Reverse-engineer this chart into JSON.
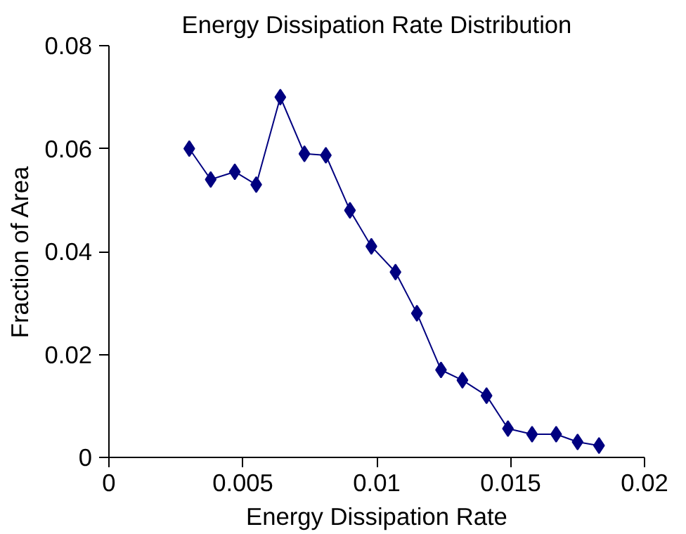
{
  "chart_data": {
    "type": "line",
    "title": "Energy Dissipation Rate Distribution",
    "xlabel": "Energy Dissipation Rate",
    "ylabel": "Fraction of Area",
    "x": [
      0.003,
      0.0038,
      0.0047,
      0.0055,
      0.0064,
      0.0073,
      0.0081,
      0.009,
      0.0098,
      0.0107,
      0.0115,
      0.0124,
      0.0132,
      0.0141,
      0.0149,
      0.0158,
      0.0167,
      0.0175,
      0.0183
    ],
    "series": [
      {
        "color": "#000080",
        "values": [
          0.06,
          0.054,
          0.0555,
          0.053,
          0.07,
          0.059,
          0.0587,
          0.048,
          0.041,
          0.036,
          0.028,
          0.017,
          0.015,
          0.012,
          0.0056,
          0.0045,
          0.0045,
          0.003,
          0.0023
        ]
      }
    ],
    "xlim": [
      0,
      0.02
    ],
    "xticks": [
      0,
      0.005,
      0.01,
      0.015,
      0.02
    ],
    "ylim": [
      0,
      0.08
    ],
    "yticks": [
      0,
      0.02,
      0.04,
      0.06,
      0.08
    ],
    "grid": false,
    "marker": "diamond",
    "line_style": "solid"
  }
}
